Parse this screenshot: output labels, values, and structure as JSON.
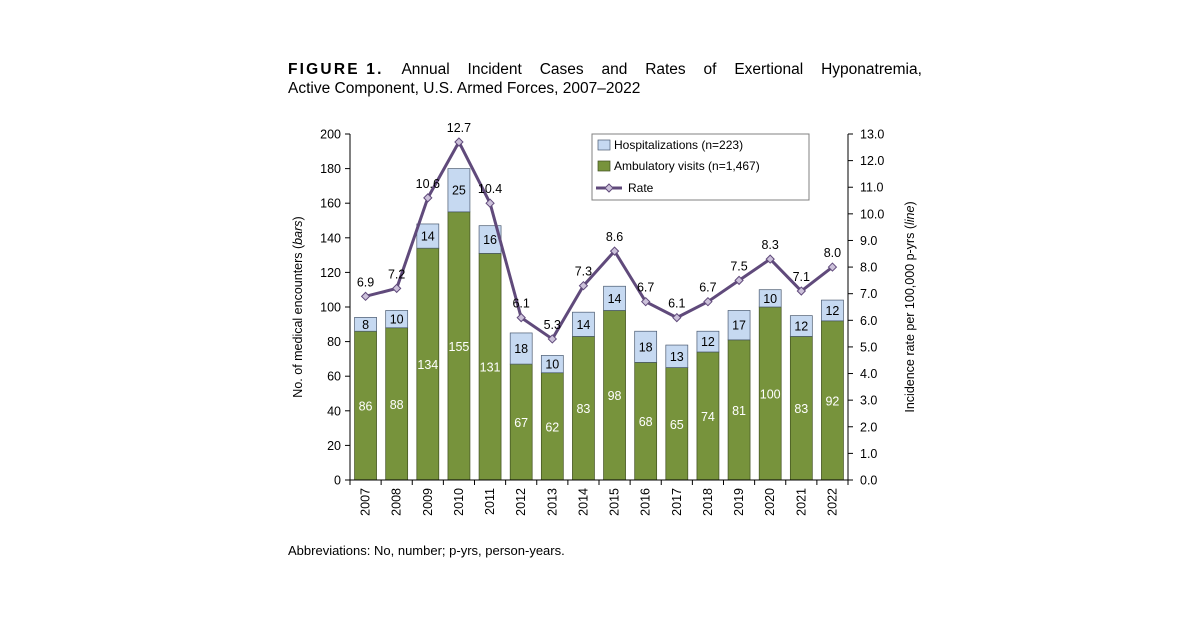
{
  "caption": {
    "label": "FIGURE 1.",
    "words1": [
      "Annual",
      "Incident",
      "Cases",
      "and",
      "Rates",
      "of",
      "Exertional",
      "Hyponatremia,"
    ],
    "line2": "Active Component, U.S. Armed Forces, 2007–2022"
  },
  "footnote": "Abbreviations: No, number; p-yrs, person-years.",
  "chart_data": {
    "type": "bar",
    "stacked": true,
    "categories": [
      "2007",
      "2008",
      "2009",
      "2010",
      "2011",
      "2012",
      "2013",
      "2014",
      "2015",
      "2016",
      "2017",
      "2018",
      "2019",
      "2020",
      "2021",
      "2022"
    ],
    "series": [
      {
        "name": "Ambulatory visits (n=1,467)",
        "color": "#77933c",
        "values": [
          86,
          88,
          134,
          155,
          131,
          67,
          62,
          83,
          98,
          68,
          65,
          74,
          81,
          100,
          83,
          92
        ]
      },
      {
        "name": "Hospitalizations (n=223)",
        "color": "#c6d9f1",
        "values": [
          8,
          10,
          14,
          25,
          16,
          18,
          10,
          14,
          14,
          18,
          13,
          12,
          17,
          10,
          12,
          12
        ]
      }
    ],
    "line": {
      "name": "Rate",
      "color": "#604a7b",
      "marker_color": "#ccc1da",
      "values": [
        6.9,
        7.2,
        10.6,
        12.7,
        10.4,
        6.1,
        5.3,
        7.3,
        8.6,
        6.7,
        6.1,
        6.7,
        7.5,
        8.3,
        7.1,
        8.0
      ]
    },
    "y_left": {
      "label_prefix": "No. of medical encounters (",
      "label_italic": "bars",
      "label_suffix": ")",
      "ylim": [
        0,
        200
      ],
      "ticks": [
        0,
        20,
        40,
        60,
        80,
        100,
        120,
        140,
        160,
        180,
        200
      ]
    },
    "y_right": {
      "label_prefix": "Incidence rate per 100,000 p-yrs (",
      "label_italic": "line",
      "label_suffix": ")",
      "ylim": [
        0.0,
        13.0
      ],
      "ticks": [
        "0.0",
        "1.0",
        "2.0",
        "3.0",
        "4.0",
        "5.0",
        "6.0",
        "7.0",
        "8.0",
        "9.0",
        "10.0",
        "11.0",
        "12.0",
        "13.0"
      ]
    },
    "legend": {
      "position": "top-right",
      "items": [
        "Hospitalizations (n=223)",
        "Ambulatory visits (n=1,467)",
        "Rate"
      ]
    }
  }
}
